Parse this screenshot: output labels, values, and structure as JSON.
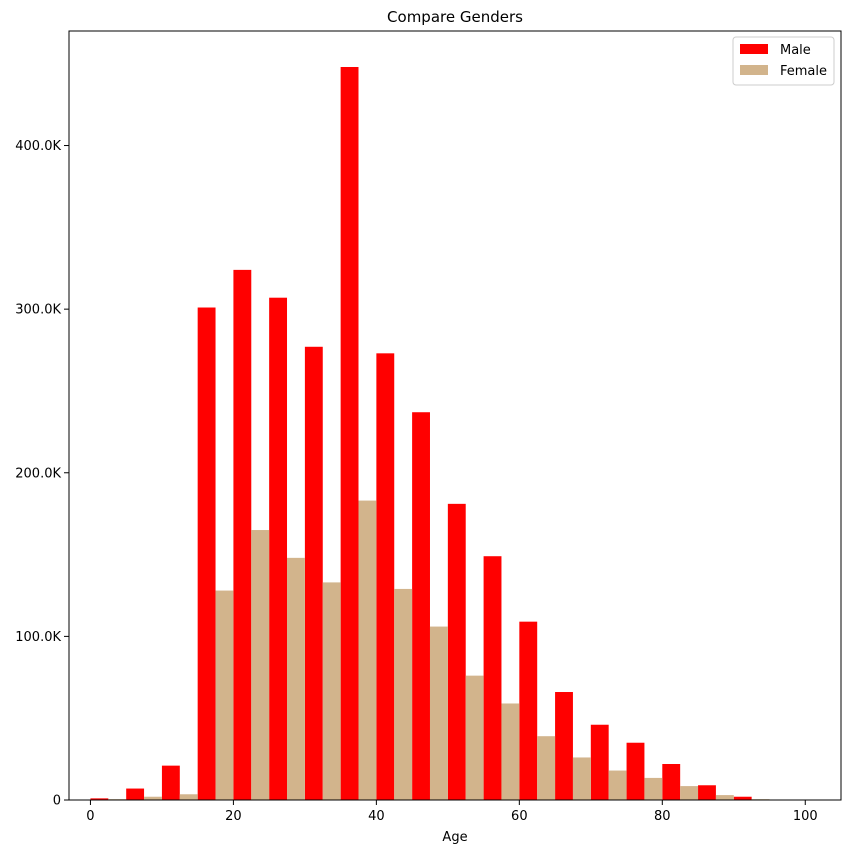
{
  "chart_data": {
    "type": "bar",
    "title": "Compare Genders",
    "xlabel": "Age",
    "ylabel": "",
    "bin_width": 5,
    "xlim": [
      -3,
      105
    ],
    "ylim": [
      0,
      470000
    ],
    "x_ticks": [
      0,
      20,
      40,
      60,
      80,
      100
    ],
    "x_tick_labels": [
      "0",
      "20",
      "40",
      "60",
      "80",
      "100"
    ],
    "y_ticks": [
      0,
      100000,
      200000,
      300000,
      400000
    ],
    "y_tick_labels": [
      "0",
      "100.0K",
      "200.0K",
      "300.0K",
      "400.0K"
    ],
    "bins": [
      0,
      5,
      10,
      15,
      20,
      25,
      30,
      35,
      40,
      45,
      50,
      55,
      60,
      65,
      70,
      75,
      80,
      85,
      90,
      95
    ],
    "legend_position": "top-right",
    "grid": false,
    "series": [
      {
        "name": "Male",
        "color": "#ff0000",
        "values": [
          1000,
          7000,
          21000,
          301000,
          324000,
          307000,
          277000,
          448000,
          273000,
          237000,
          181000,
          149000,
          109000,
          66000,
          46000,
          35000,
          22000,
          9000,
          2000,
          0
        ]
      },
      {
        "name": "Female",
        "color": "#d2b48c",
        "values": [
          500,
          2000,
          3500,
          128000,
          165000,
          148000,
          133000,
          183000,
          129000,
          106000,
          76000,
          59000,
          39000,
          26000,
          18000,
          13500,
          8500,
          3000,
          500,
          0
        ]
      }
    ]
  }
}
